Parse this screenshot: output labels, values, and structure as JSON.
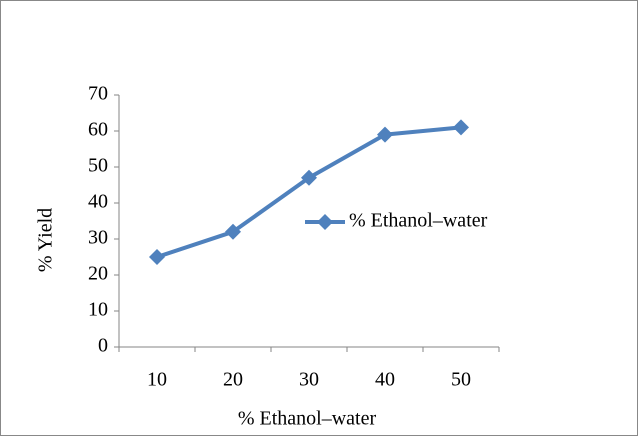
{
  "chart_data": {
    "type": "line",
    "x_label": "% Ethanol–water",
    "y_label": "% Yield",
    "categories": [
      "10",
      "20",
      "30",
      "40",
      "50"
    ],
    "series": [
      {
        "name": "% Ethanol–water",
        "color": "#4f81bd",
        "values": [
          25,
          32,
          47,
          59,
          61
        ]
      }
    ],
    "ylim": [
      0,
      70
    ],
    "yticks": [
      0,
      10,
      20,
      30,
      40,
      50,
      60,
      70
    ],
    "grid": false,
    "legend": "right"
  }
}
